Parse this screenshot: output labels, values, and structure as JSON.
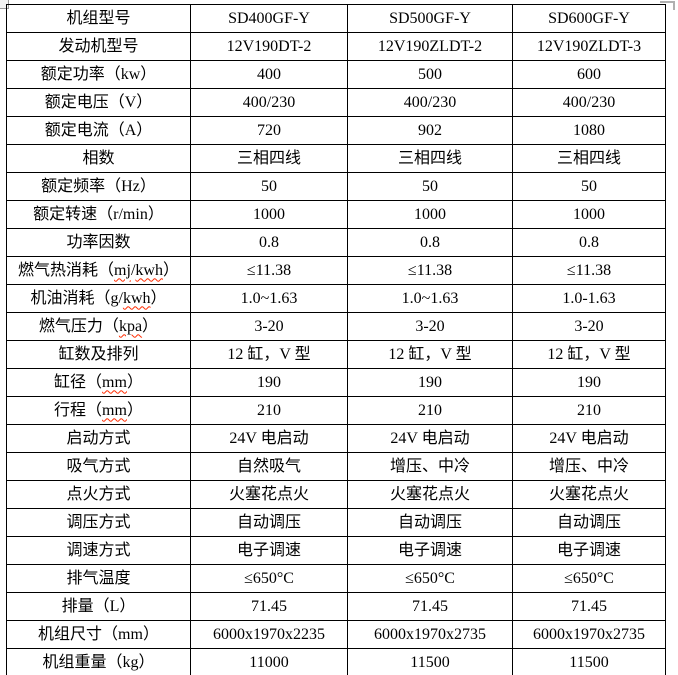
{
  "colors": {
    "text": "#000000",
    "border": "#000000",
    "spellcheck_underline": "#ff2a00",
    "handle_gray": "#9a9a9a",
    "background": "#ffffff"
  },
  "icons": {
    "table_move_handle": "gray square, top-left",
    "table_corner_mark": "gray corner bracket, top-right"
  },
  "table": {
    "rows": [
      {
        "label": "机组型号",
        "values": [
          "SD400GF-Y",
          "SD500GF-Y",
          "SD600GF-Y"
        ]
      },
      {
        "label": "发动机型号",
        "values": [
          "12V190DT-2",
          "12V190ZLDT-2",
          "12V190ZLDT-3"
        ]
      },
      {
        "label": "额定功率（kw）",
        "values": [
          "400",
          "500",
          "600"
        ]
      },
      {
        "label": "额定电压（V）",
        "values": [
          "400/230",
          "400/230",
          "400/230"
        ]
      },
      {
        "label": "额定电流（A）",
        "values": [
          "720",
          "902",
          "1080"
        ]
      },
      {
        "label": "相数",
        "values": [
          "三相四线",
          "三相四线",
          "三相四线"
        ]
      },
      {
        "label": "额定频率（Hz）",
        "values": [
          "50",
          "50",
          "50"
        ]
      },
      {
        "label": "额定转速（r/min）",
        "values": [
          "1000",
          "1000",
          "1000"
        ]
      },
      {
        "label": "功率因数",
        "values": [
          "0.8",
          "0.8",
          "0.8"
        ]
      },
      {
        "label": "燃气热消耗（mj/kwh）",
        "label_parts": [
          {
            "text": "燃气热消耗（"
          },
          {
            "text": "mj",
            "wavy": true
          },
          {
            "text": "/"
          },
          {
            "text": "kwh",
            "wavy": true
          },
          {
            "text": "）"
          }
        ],
        "values": [
          "≤11.38",
          "≤11.38",
          "≤11.38"
        ]
      },
      {
        "label": "机油消耗（g/kwh）",
        "label_parts": [
          {
            "text": "机油消耗（g/"
          },
          {
            "text": "kwh",
            "wavy": true
          },
          {
            "text": "）"
          }
        ],
        "values": [
          "1.0~1.63",
          "1.0~1.63",
          "1.0-1.63"
        ]
      },
      {
        "label": "燃气压力（kpa）",
        "label_parts": [
          {
            "text": "燃气压力（"
          },
          {
            "text": "kpa",
            "wavy": true
          },
          {
            "text": "）"
          }
        ],
        "values": [
          "3-20",
          "3-20",
          "3-20"
        ]
      },
      {
        "label": "缸数及排列",
        "values": [
          "12 缸，V 型",
          "12 缸，V 型",
          "12 缸，V 型"
        ]
      },
      {
        "label": "缸径（mm）",
        "label_parts": [
          {
            "text": "缸径（"
          },
          {
            "text": "mm",
            "wavy": true
          },
          {
            "text": "）"
          }
        ],
        "values": [
          "190",
          "190",
          "190"
        ]
      },
      {
        "label": "行程（mm）",
        "label_parts": [
          {
            "text": "行程（"
          },
          {
            "text": "mm",
            "wavy": true
          },
          {
            "text": "）"
          }
        ],
        "values": [
          "210",
          "210",
          "210"
        ]
      },
      {
        "label": "启动方式",
        "values": [
          "24V 电启动",
          "24V 电启动",
          "24V 电启动"
        ]
      },
      {
        "label": "吸气方式",
        "values": [
          "自然吸气",
          "增压、中冷",
          "增压、中冷"
        ]
      },
      {
        "label": "点火方式",
        "values": [
          "火塞花点火",
          "火塞花点火",
          "火塞花点火"
        ]
      },
      {
        "label": "调压方式",
        "values": [
          "自动调压",
          "自动调压",
          "自动调压"
        ]
      },
      {
        "label": "调速方式",
        "values": [
          "电子调速",
          "电子调速",
          "电子调速"
        ]
      },
      {
        "label": "排气温度",
        "values": [
          "≤650°C",
          "≤650°C",
          "≤650°C"
        ]
      },
      {
        "label": "排量（L）",
        "values": [
          "71.45",
          "71.45",
          "71.45"
        ]
      },
      {
        "label": "机组尺寸（mm）",
        "values": [
          "6000x1970x2235",
          "6000x1970x2735",
          "6000x1970x2735"
        ]
      },
      {
        "label": "机组重量（kg）",
        "values": [
          "11000",
          "11500",
          "11500"
        ]
      }
    ]
  }
}
